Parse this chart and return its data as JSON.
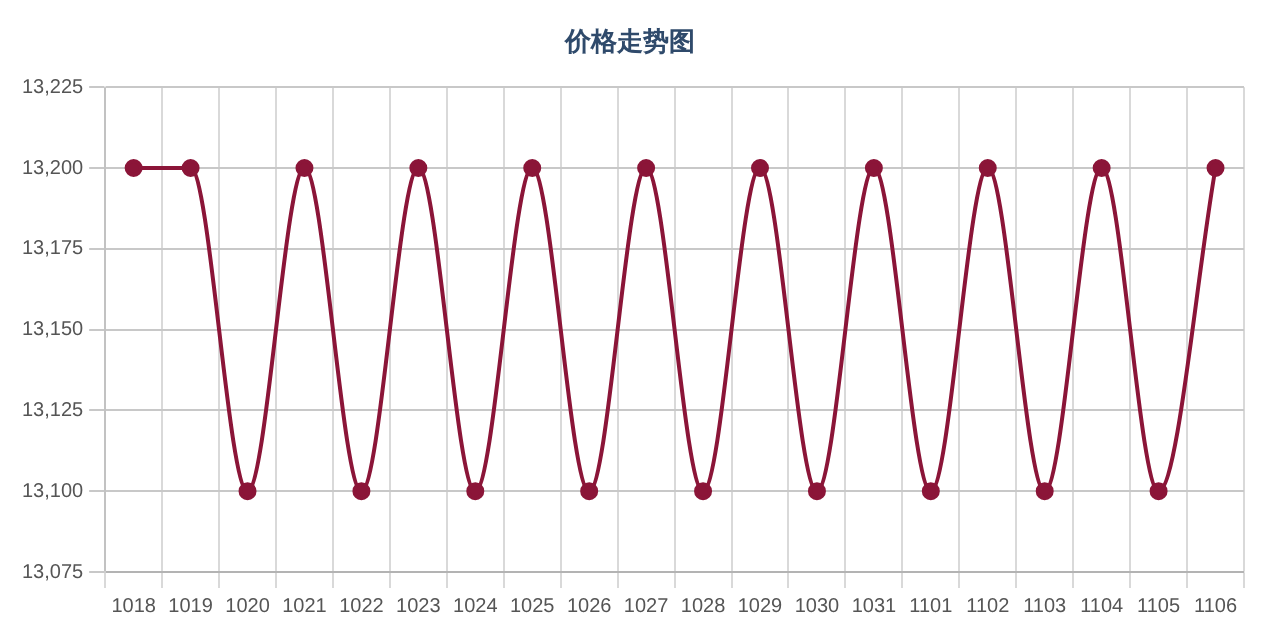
{
  "chart_data": {
    "type": "line",
    "title": "价格走势图",
    "categories": [
      "1018",
      "1019",
      "1020",
      "1021",
      "1022",
      "1023",
      "1024",
      "1025",
      "1026",
      "1027",
      "1028",
      "1029",
      "1030",
      "1031",
      "1101",
      "1102",
      "1103",
      "1104",
      "1105",
      "1106"
    ],
    "series": [
      {
        "color": "#8b1538",
        "values": [
          13200,
          13200,
          13100,
          13200,
          13100,
          13200,
          13100,
          13200,
          13100,
          13200,
          13100,
          13200,
          13100,
          13200,
          13100,
          13200,
          13100,
          13200,
          13100,
          13200
        ]
      }
    ],
    "ylim": [
      13075,
      13225
    ],
    "yticks": [
      {
        "value": 13075,
        "label": "13,075"
      },
      {
        "value": 13100,
        "label": "13,100"
      },
      {
        "value": 13125,
        "label": "13,125"
      },
      {
        "value": 13150,
        "label": "13,150"
      },
      {
        "value": 13175,
        "label": "13,175"
      },
      {
        "value": 13200,
        "label": "13,200"
      },
      {
        "value": 13225,
        "label": "13,225"
      }
    ],
    "grid": true,
    "marker": "circle",
    "legend": false
  }
}
